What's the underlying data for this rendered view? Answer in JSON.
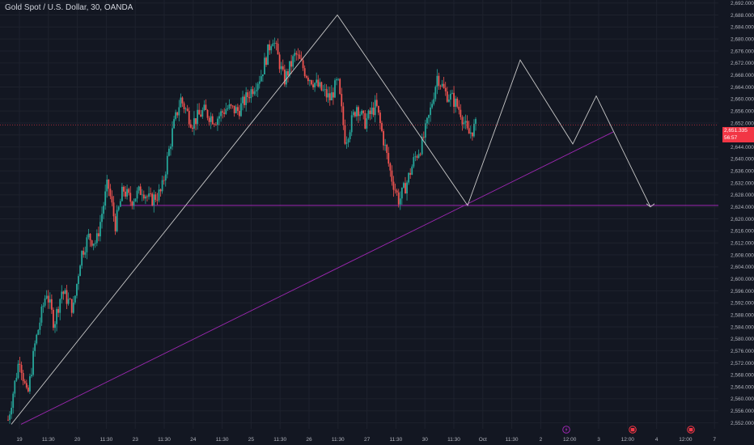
{
  "header": {
    "title": "Gold Spot / U.S. Dollar, 30, OANDA"
  },
  "price_badge": {
    "price": "2,651.335",
    "countdown": "56:57",
    "color": "#f23645"
  },
  "colors": {
    "background": "#131722",
    "up": "#26a69a",
    "down": "#ef5350",
    "projection": "#c8c8c8",
    "trendline": "#9c27b0"
  },
  "event_icons": [
    {
      "name": "lightning-icon",
      "color": "#9c27b0"
    },
    {
      "name": "calendar-icon",
      "color": "#f23645"
    },
    {
      "name": "calendar-icon",
      "color": "#f23645"
    }
  ],
  "chart_data": {
    "type": "candlestick",
    "title": "Gold Spot / U.S. Dollar, 30, OANDA",
    "ylim": [
      2550,
      2693
    ],
    "yticks": [
      "2,552.000",
      "2,556.000",
      "2,560.000",
      "2,564.000",
      "2,568.000",
      "2,572.000",
      "2,576.000",
      "2,580.000",
      "2,584.000",
      "2,588.000",
      "2,592.000",
      "2,596.000",
      "2,600.000",
      "2,604.000",
      "2,608.000",
      "2,612.000",
      "2,616.000",
      "2,620.000",
      "2,624.000",
      "2,628.000",
      "2,632.000",
      "2,636.000",
      "2,640.000",
      "2,644.000",
      "2,648.000",
      "2,652.000",
      "2,656.000",
      "2,660.000",
      "2,664.000",
      "2,668.000",
      "2,672.000",
      "2,676.000",
      "2,680.000",
      "2,684.000",
      "2,688.000",
      "2,692.000"
    ],
    "xticks": [
      "19",
      "11:30",
      "20",
      "11:30",
      "23",
      "11:30",
      "24",
      "11:30",
      "25",
      "11:30",
      "26",
      "11:30",
      "27",
      "11:30",
      "30",
      "11:30",
      "Oct",
      "11:30",
      "2",
      "12:00",
      "3",
      "12:00",
      "4",
      "12:00",
      "7"
    ],
    "price_path": [
      [
        0,
        2553
      ],
      [
        3,
        2574
      ],
      [
        5,
        2560
      ],
      [
        7,
        2578
      ],
      [
        10,
        2596
      ],
      [
        12,
        2585
      ],
      [
        14,
        2596
      ],
      [
        17,
        2590
      ],
      [
        19,
        2608
      ],
      [
        21,
        2614
      ],
      [
        23,
        2612
      ],
      [
        26,
        2632
      ],
      [
        28,
        2618
      ],
      [
        30,
        2630
      ],
      [
        32,
        2626
      ],
      [
        35,
        2630
      ],
      [
        37,
        2626
      ],
      [
        40,
        2629
      ],
      [
        43,
        2650
      ],
      [
        45,
        2660
      ],
      [
        48,
        2652
      ],
      [
        51,
        2656
      ],
      [
        54,
        2653
      ],
      [
        57,
        2657
      ],
      [
        60,
        2656
      ],
      [
        63,
        2662
      ],
      [
        66,
        2668
      ],
      [
        69,
        2681
      ],
      [
        72,
        2666
      ],
      [
        75,
        2675
      ],
      [
        78,
        2668
      ],
      [
        81,
        2664
      ],
      [
        84,
        2660
      ],
      [
        86,
        2666
      ],
      [
        88,
        2646
      ],
      [
        91,
        2658
      ],
      [
        93,
        2652
      ],
      [
        96,
        2658
      ],
      [
        98,
        2646
      ],
      [
        100,
        2634
      ],
      [
        102,
        2626
      ],
      [
        104,
        2632
      ],
      [
        106,
        2640
      ],
      [
        108,
        2645
      ],
      [
        110,
        2655
      ],
      [
        112,
        2668
      ],
      [
        114,
        2662
      ],
      [
        116,
        2660
      ],
      [
        118,
        2656
      ],
      [
        120,
        2648
      ],
      [
        122,
        2651
      ]
    ],
    "projection_path": [
      {
        "label": "start",
        "value": 2551.5
      },
      {
        "label": "top",
        "value": 2688.0
      },
      {
        "label": "low",
        "value": 2624.5
      },
      {
        "label": "second-top",
        "value": 2673.0
      },
      {
        "label": "pullback",
        "value": 2645.0
      },
      {
        "label": "peak",
        "value": 2661.0
      },
      {
        "label": "target",
        "value": 2624.0
      }
    ],
    "support_level": 2624.5,
    "trendline": [
      {
        "at": "start",
        "value": 2551.5
      },
      {
        "at": "end",
        "value": 2649.0
      }
    ],
    "last_price": 2651.335,
    "grid": true,
    "legend": "none"
  }
}
